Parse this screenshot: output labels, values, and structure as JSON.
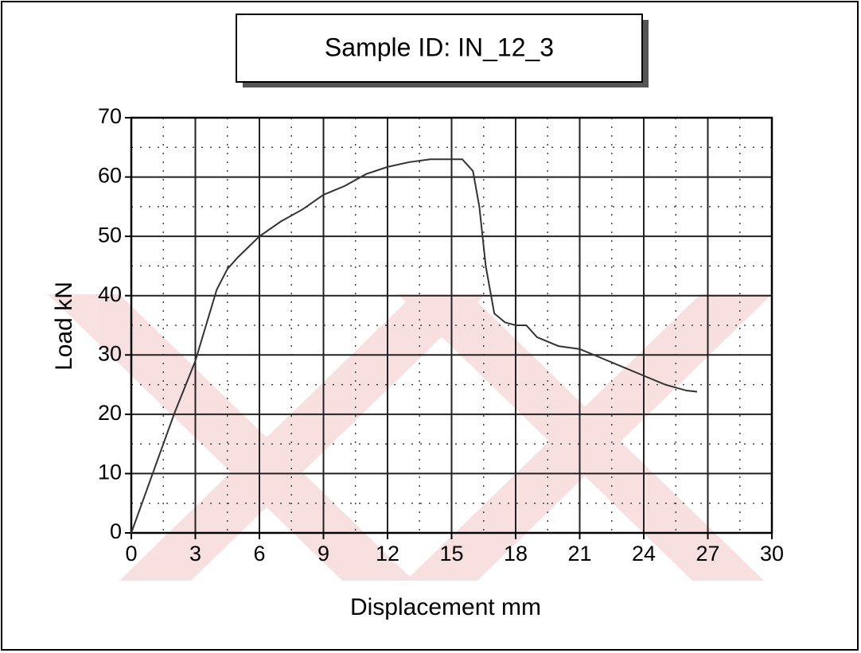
{
  "chart_data": {
    "type": "line",
    "title": "Sample ID: IN_12_3",
    "x_label": "Displacement mm",
    "y_label": "Load kN",
    "x": [
      0,
      1,
      2,
      3,
      3.5,
      4,
      4.5,
      5,
      6,
      7,
      8,
      9,
      10,
      11,
      12,
      13,
      14,
      15,
      15.5,
      16,
      16.3,
      16.6,
      17,
      17.5,
      18,
      18.5,
      19,
      20,
      21,
      22,
      23,
      24,
      25,
      26,
      26.5
    ],
    "values": [
      0,
      10,
      20,
      29,
      35,
      41,
      44.5,
      46.5,
      50,
      52.5,
      54.5,
      57,
      58.5,
      60.5,
      61.7,
      62.5,
      63,
      63,
      63,
      61,
      55,
      45,
      37,
      35.5,
      35,
      35,
      33,
      31.5,
      31,
      29.5,
      28,
      26.5,
      25,
      24,
      23.8
    ],
    "color": "#333333",
    "xlim": [
      0,
      30
    ],
    "xticks": [
      0,
      3,
      6,
      9,
      12,
      15,
      18,
      21,
      24,
      27,
      30
    ],
    "ylim": [
      0,
      70
    ],
    "yticks": [
      0,
      10,
      20,
      30,
      40,
      50,
      60,
      70
    ],
    "grid": true,
    "minor_grid": true
  }
}
